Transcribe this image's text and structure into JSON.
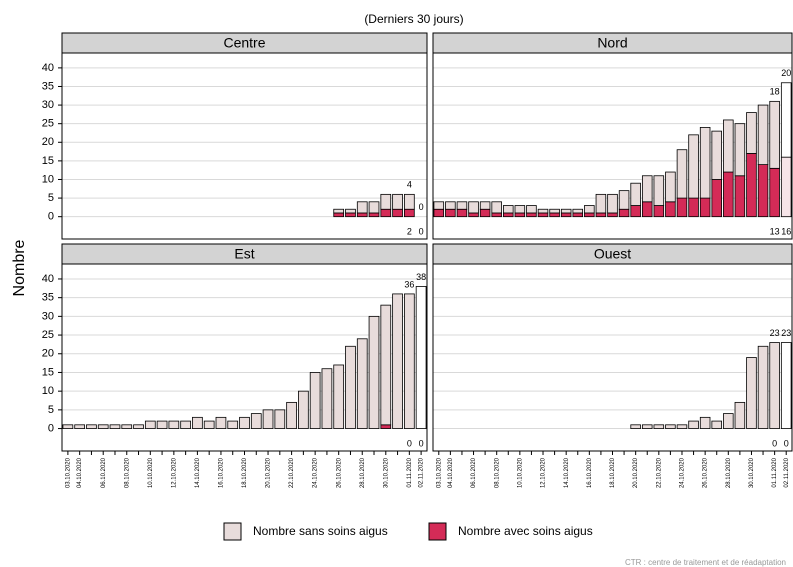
{
  "chart_data": {
    "type": "bar",
    "stacked": true,
    "subtitle": "(Derniers 30 jours)",
    "ylabel": "Nombre",
    "note": "CTR : centre de traitement et de réadaptation",
    "categories": [
      "03.10.2020",
      "04.10.2020",
      null,
      "06.10.2020",
      null,
      "08.10.2020",
      null,
      "10.10.2020",
      null,
      "12.10.2020",
      null,
      "14.10.2020",
      null,
      "16.10.2020",
      null,
      "18.10.2020",
      null,
      "20.10.2020",
      null,
      "22.10.2020",
      null,
      "24.10.2020",
      null,
      "26.10.2020",
      null,
      "28.10.2020",
      null,
      "30.10.2020",
      null,
      "01.11.2020",
      "02.11.2020"
    ],
    "ylim": [
      -6,
      44
    ],
    "yticks": [
      0,
      5,
      10,
      15,
      20,
      25,
      30,
      35,
      40
    ],
    "grid": true,
    "series": [
      {
        "name": "Nombre sans soins aigus",
        "color": "#e8dcdb"
      },
      {
        "name": "Nombre avec soins aigus",
        "color": "#d42b57"
      }
    ],
    "panels": [
      {
        "title": "Centre",
        "series": [
          {
            "values": [
              0,
              0,
              0,
              0,
              0,
              0,
              0,
              0,
              0,
              0,
              0,
              0,
              0,
              0,
              0,
              0,
              0,
              0,
              0,
              0,
              0,
              0,
              0,
              1,
              1,
              3,
              3,
              4,
              4,
              4,
              0
            ]
          },
          {
            "values": [
              0,
              0,
              0,
              0,
              0,
              0,
              0,
              0,
              0,
              0,
              0,
              0,
              0,
              0,
              0,
              0,
              0,
              0,
              0,
              0,
              0,
              0,
              0,
              1,
              1,
              1,
              1,
              2,
              2,
              2,
              0
            ]
          }
        ]
      },
      {
        "title": "Nord",
        "series": [
          {
            "values": [
              2,
              2,
              2,
              3,
              2,
              3,
              2,
              2,
              2,
              1,
              1,
              1,
              1,
              2,
              5,
              5,
              5,
              6,
              7,
              8,
              8,
              13,
              17,
              19,
              13,
              14,
              14,
              11,
              16,
              18,
              20
            ]
          },
          {
            "values": [
              2,
              2,
              2,
              1,
              2,
              1,
              1,
              1,
              1,
              1,
              1,
              1,
              1,
              1,
              1,
              1,
              2,
              3,
              4,
              3,
              4,
              5,
              5,
              5,
              10,
              12,
              11,
              17,
              14,
              13,
              16
            ]
          }
        ]
      },
      {
        "title": "Est",
        "series": [
          {
            "values": [
              1,
              1,
              1,
              1,
              1,
              1,
              1,
              2,
              2,
              2,
              2,
              3,
              2,
              3,
              2,
              3,
              4,
              5,
              5,
              7,
              10,
              15,
              16,
              17,
              22,
              24,
              30,
              32,
              36,
              36,
              38
            ]
          },
          {
            "values": [
              0,
              0,
              0,
              0,
              0,
              0,
              0,
              0,
              0,
              0,
              0,
              0,
              0,
              0,
              0,
              0,
              0,
              0,
              0,
              0,
              0,
              0,
              0,
              0,
              0,
              0,
              0,
              1,
              0,
              0,
              0
            ]
          }
        ]
      },
      {
        "title": "Ouest",
        "series": [
          {
            "values": [
              0,
              0,
              0,
              0,
              0,
              0,
              0,
              0,
              0,
              0,
              0,
              0,
              0,
              0,
              0,
              0,
              0,
              1,
              1,
              1,
              1,
              1,
              2,
              3,
              2,
              4,
              7,
              19,
              22,
              23,
              23
            ]
          },
          {
            "values": [
              0,
              0,
              0,
              0,
              0,
              0,
              0,
              0,
              0,
              0,
              0,
              0,
              0,
              0,
              0,
              0,
              0,
              0,
              0,
              0,
              0,
              0,
              0,
              0,
              0,
              0,
              0,
              0,
              0,
              0,
              0
            ]
          }
        ]
      }
    ]
  }
}
